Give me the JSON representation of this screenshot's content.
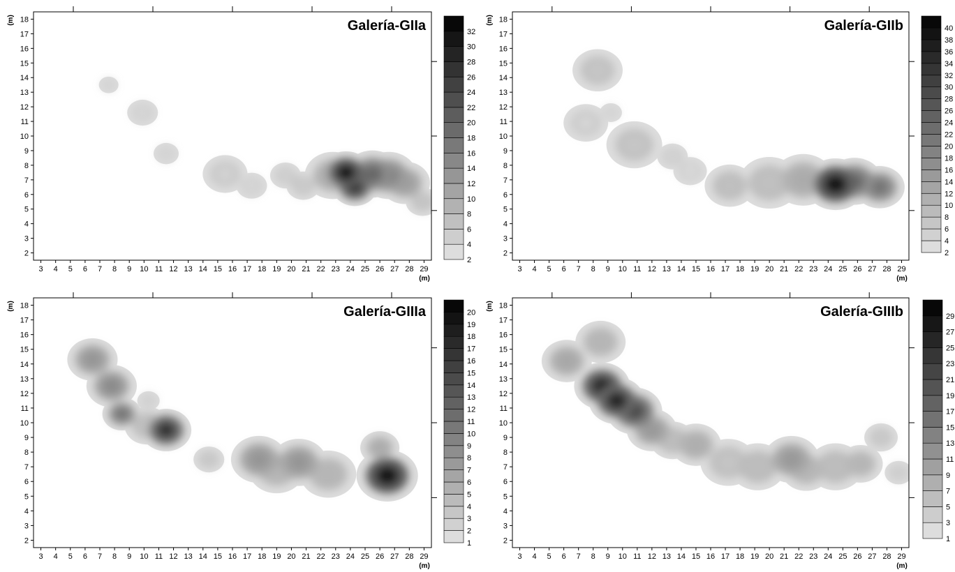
{
  "chart_data": [
    {
      "type": "heatmap",
      "title": "Galería-GIIa",
      "xlabel": "(m)",
      "ylabel": "(m)",
      "xlim": [
        2.5,
        29.5
      ],
      "ylim": [
        1.5,
        18.5
      ],
      "x_ticks": [
        3,
        4,
        5,
        6,
        7,
        8,
        9,
        10,
        11,
        12,
        13,
        14,
        15,
        16,
        17,
        18,
        19,
        20,
        21,
        22,
        23,
        24,
        25,
        26,
        27,
        28,
        29
      ],
      "y_ticks": [
        2,
        3,
        4,
        5,
        6,
        7,
        8,
        9,
        10,
        11,
        12,
        13,
        14,
        15,
        16,
        17,
        18
      ],
      "colorbar": {
        "min": 2,
        "max": 34,
        "labels": [
          2,
          4,
          6,
          8,
          10,
          12,
          14,
          16,
          18,
          20,
          22,
          24,
          26,
          28,
          30,
          32
        ]
      },
      "hotspots": [
        {
          "x": 7.6,
          "y": 13.5,
          "r": 0.35,
          "v": 3
        },
        {
          "x": 9.9,
          "y": 11.6,
          "r": 0.55,
          "v": 3
        },
        {
          "x": 11.5,
          "y": 8.8,
          "r": 0.45,
          "v": 3
        },
        {
          "x": 15.5,
          "y": 7.4,
          "r": 0.8,
          "v": 4
        },
        {
          "x": 17.3,
          "y": 6.6,
          "r": 0.55,
          "v": 3
        },
        {
          "x": 19.6,
          "y": 7.3,
          "r": 0.55,
          "v": 4
        },
        {
          "x": 20.8,
          "y": 6.6,
          "r": 0.6,
          "v": 5
        },
        {
          "x": 22.8,
          "y": 7.3,
          "r": 1.0,
          "v": 10
        },
        {
          "x": 23.7,
          "y": 7.5,
          "r": 0.9,
          "v": 32
        },
        {
          "x": 24.3,
          "y": 6.5,
          "r": 0.8,
          "v": 28
        },
        {
          "x": 25.5,
          "y": 7.4,
          "r": 1.0,
          "v": 20
        },
        {
          "x": 26.6,
          "y": 7.3,
          "r": 1.0,
          "v": 16
        },
        {
          "x": 27.7,
          "y": 6.8,
          "r": 0.9,
          "v": 12
        },
        {
          "x": 28.9,
          "y": 5.5,
          "r": 0.6,
          "v": 6
        }
      ]
    },
    {
      "type": "heatmap",
      "title": "Galería-GIIb",
      "xlabel": "(m)",
      "ylabel": "(m)",
      "xlim": [
        2.5,
        29.5
      ],
      "ylim": [
        1.5,
        18.5
      ],
      "x_ticks": [
        3,
        4,
        5,
        6,
        7,
        8,
        9,
        10,
        11,
        12,
        13,
        14,
        15,
        16,
        17,
        18,
        19,
        20,
        21,
        22,
        23,
        24,
        25,
        26,
        27,
        28,
        29
      ],
      "y_ticks": [
        2,
        3,
        4,
        5,
        6,
        7,
        8,
        9,
        10,
        11,
        12,
        13,
        14,
        15,
        16,
        17,
        18
      ],
      "colorbar": {
        "min": 2,
        "max": 42,
        "labels": [
          2,
          4,
          6,
          8,
          10,
          12,
          14,
          16,
          18,
          20,
          22,
          24,
          26,
          28,
          30,
          32,
          34,
          36,
          38,
          40
        ]
      },
      "hotspots": [
        {
          "x": 8.3,
          "y": 14.5,
          "r": 0.9,
          "v": 7
        },
        {
          "x": 7.5,
          "y": 10.9,
          "r": 0.8,
          "v": 4
        },
        {
          "x": 9.2,
          "y": 11.6,
          "r": 0.4,
          "v": 3
        },
        {
          "x": 10.8,
          "y": 9.4,
          "r": 1.0,
          "v": 7
        },
        {
          "x": 13.4,
          "y": 8.6,
          "r": 0.55,
          "v": 4
        },
        {
          "x": 14.6,
          "y": 7.6,
          "r": 0.6,
          "v": 3
        },
        {
          "x": 17.3,
          "y": 6.6,
          "r": 0.9,
          "v": 8
        },
        {
          "x": 20.0,
          "y": 6.8,
          "r": 1.1,
          "v": 8
        },
        {
          "x": 22.3,
          "y": 7.0,
          "r": 1.1,
          "v": 12
        },
        {
          "x": 24.5,
          "y": 6.7,
          "r": 1.1,
          "v": 40
        },
        {
          "x": 25.8,
          "y": 6.9,
          "r": 1.0,
          "v": 24
        },
        {
          "x": 27.5,
          "y": 6.5,
          "r": 0.9,
          "v": 22
        }
      ]
    },
    {
      "type": "heatmap",
      "title": "Galería-GIIIa",
      "xlabel": "(m)",
      "ylabel": "(m)",
      "xlim": [
        2.5,
        29.5
      ],
      "ylim": [
        1.5,
        18.5
      ],
      "x_ticks": [
        3,
        4,
        5,
        6,
        7,
        8,
        9,
        10,
        11,
        12,
        13,
        14,
        15,
        16,
        17,
        18,
        19,
        20,
        21,
        22,
        23,
        24,
        25,
        26,
        27,
        28,
        29
      ],
      "y_ticks": [
        2,
        3,
        4,
        5,
        6,
        7,
        8,
        9,
        10,
        11,
        12,
        13,
        14,
        15,
        16,
        17,
        18
      ],
      "colorbar": {
        "min": 1,
        "max": 21,
        "labels": [
          1,
          2,
          3,
          4,
          5,
          6,
          7,
          8,
          9,
          10,
          11,
          12,
          13,
          14,
          15,
          16,
          17,
          18,
          19,
          20
        ]
      },
      "hotspots": [
        {
          "x": 6.5,
          "y": 14.3,
          "r": 0.9,
          "v": 8
        },
        {
          "x": 7.8,
          "y": 12.5,
          "r": 0.9,
          "v": 9
        },
        {
          "x": 8.5,
          "y": 10.6,
          "r": 0.7,
          "v": 11
        },
        {
          "x": 10.2,
          "y": 9.8,
          "r": 0.8,
          "v": 4
        },
        {
          "x": 11.5,
          "y": 9.5,
          "r": 0.9,
          "v": 17
        },
        {
          "x": 10.3,
          "y": 11.5,
          "r": 0.4,
          "v": 2
        },
        {
          "x": 14.4,
          "y": 7.5,
          "r": 0.55,
          "v": 3
        },
        {
          "x": 17.8,
          "y": 7.5,
          "r": 1.0,
          "v": 8
        },
        {
          "x": 19.0,
          "y": 6.8,
          "r": 1.0,
          "v": 5
        },
        {
          "x": 20.5,
          "y": 7.3,
          "r": 1.0,
          "v": 8
        },
        {
          "x": 22.5,
          "y": 6.5,
          "r": 1.0,
          "v": 5
        },
        {
          "x": 26.0,
          "y": 8.3,
          "r": 0.7,
          "v": 6
        },
        {
          "x": 26.5,
          "y": 6.4,
          "r": 1.1,
          "v": 20
        }
      ]
    },
    {
      "type": "heatmap",
      "title": "Galería-GIIIb",
      "xlabel": "(m)",
      "ylabel": "(m)",
      "xlim": [
        2.5,
        29.5
      ],
      "ylim": [
        1.5,
        18.5
      ],
      "x_ticks": [
        3,
        4,
        5,
        6,
        7,
        8,
        9,
        10,
        11,
        12,
        13,
        14,
        15,
        16,
        17,
        18,
        19,
        20,
        21,
        22,
        23,
        24,
        25,
        26,
        27,
        28,
        29
      ],
      "y_ticks": [
        2,
        3,
        4,
        5,
        6,
        7,
        8,
        9,
        10,
        11,
        12,
        13,
        14,
        15,
        16,
        17,
        18
      ],
      "colorbar": {
        "min": 1,
        "max": 31,
        "labels": [
          1,
          3,
          5,
          7,
          9,
          11,
          13,
          15,
          17,
          19,
          21,
          23,
          25,
          27,
          29
        ]
      },
      "hotspots": [
        {
          "x": 6.2,
          "y": 14.2,
          "r": 0.9,
          "v": 9
        },
        {
          "x": 8.5,
          "y": 15.5,
          "r": 0.9,
          "v": 7
        },
        {
          "x": 8.6,
          "y": 12.5,
          "r": 1.0,
          "v": 27
        },
        {
          "x": 9.6,
          "y": 11.5,
          "r": 1.0,
          "v": 27
        },
        {
          "x": 10.8,
          "y": 10.8,
          "r": 1.0,
          "v": 22
        },
        {
          "x": 12.0,
          "y": 9.5,
          "r": 0.9,
          "v": 11
        },
        {
          "x": 13.4,
          "y": 8.8,
          "r": 0.8,
          "v": 6
        },
        {
          "x": 15.0,
          "y": 8.5,
          "r": 0.9,
          "v": 8
        },
        {
          "x": 17.2,
          "y": 7.3,
          "r": 1.0,
          "v": 5
        },
        {
          "x": 19.2,
          "y": 7.0,
          "r": 1.0,
          "v": 6
        },
        {
          "x": 21.5,
          "y": 7.5,
          "r": 1.0,
          "v": 11
        },
        {
          "x": 22.5,
          "y": 6.8,
          "r": 0.9,
          "v": 7
        },
        {
          "x": 24.5,
          "y": 7.0,
          "r": 1.0,
          "v": 6
        },
        {
          "x": 26.2,
          "y": 7.2,
          "r": 0.8,
          "v": 7
        },
        {
          "x": 27.6,
          "y": 9.0,
          "r": 0.6,
          "v": 4
        },
        {
          "x": 28.8,
          "y": 6.6,
          "r": 0.5,
          "v": 3
        }
      ]
    }
  ]
}
